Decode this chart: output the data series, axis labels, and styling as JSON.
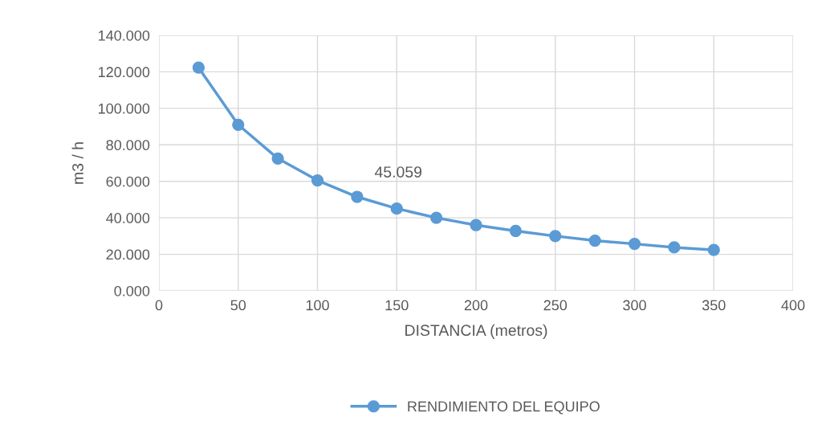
{
  "chart_data": {
    "type": "line",
    "xlabel": "DISTANCIA (metros)",
    "ylabel": "m3 / h",
    "x": [
      25,
      50,
      75,
      100,
      125,
      150,
      175,
      200,
      225,
      250,
      275,
      300,
      325,
      350
    ],
    "series": [
      {
        "name": "RENDIMIENTO DEL EQUIPO",
        "color": "#5b9bd5",
        "values": [
          122.3,
          91,
          72.5,
          60.5,
          51.5,
          45.059,
          40,
          36,
          32.8,
          30,
          27.5,
          25.7,
          23.8,
          22.4
        ]
      }
    ],
    "annotations": [
      {
        "text": "45.059",
        "x": 150,
        "y": 45.059
      }
    ],
    "xlim": [
      0,
      400
    ],
    "xticks": [
      0,
      50,
      100,
      150,
      200,
      250,
      300,
      350,
      400
    ],
    "ylim": [
      0,
      140
    ],
    "yticks": [
      {
        "value": 0,
        "label": "0.000"
      },
      {
        "value": 20,
        "label": "20.000"
      },
      {
        "value": 40,
        "label": "40.000"
      },
      {
        "value": 60,
        "label": "60.000"
      },
      {
        "value": 80,
        "label": "80.000"
      },
      {
        "value": 100,
        "label": "100.000"
      },
      {
        "value": 120,
        "label": "120.000"
      },
      {
        "value": 140,
        "label": "140.000"
      }
    ],
    "grid": true,
    "legend": "bottom",
    "marker": "circle",
    "line_style": "solid"
  }
}
